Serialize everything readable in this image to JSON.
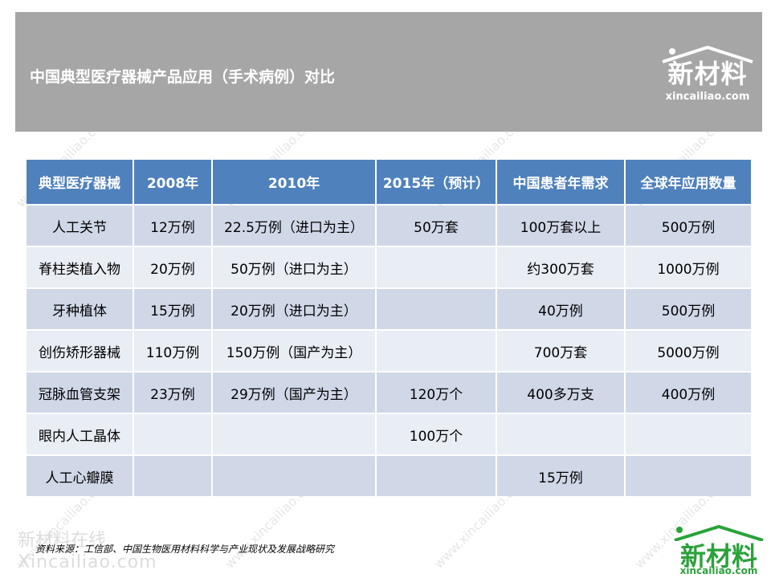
{
  "header": {
    "title": "中国典型医疗器械产品应用（手术病例）对比",
    "logo_cn": "新材料",
    "logo_en": "xincailiao.com"
  },
  "table": {
    "headers": [
      "典型医疗器械",
      "2008年",
      "2010年",
      "2015年（预计）",
      "中国患者年需求",
      "全球年应用数量"
    ],
    "rows": [
      [
        "人工关节",
        "12万例",
        "22.5万例（进口为主）",
        "50万套",
        "100万套以上",
        "500万例"
      ],
      [
        "脊柱类植入物",
        "20万例",
        "50万例（进口为主）",
        "",
        "约300万套",
        "1000万例"
      ],
      [
        "牙种植体",
        "15万例",
        "20万例（进口为主）",
        "",
        "40万例",
        "500万例"
      ],
      [
        "创伤矫形器械",
        "110万例",
        "150万例（国产为主）",
        "",
        "700万套",
        "5000万例"
      ],
      [
        "冠脉血管支架",
        "23万例",
        "29万例（国产为主）",
        "120万个",
        "400多万支",
        "400万例"
      ],
      [
        "眼内人工晶体",
        "",
        "",
        "100万个",
        "",
        ""
      ],
      [
        "人工心瓣膜",
        "",
        "",
        "",
        "15万例",
        ""
      ]
    ]
  },
  "footer": {
    "source": "资料来源：工信部、中国生物医用材料科学与产业现状及发展战略研究",
    "watermark_cn": "新材料在线",
    "watermark_en": "Xincailiao.com",
    "logo_cn": "新材料",
    "logo_en": "xincailiao.com"
  },
  "colors": {
    "header_bg": "#a6a6a6",
    "table_header": "#4f81bd",
    "row_odd": "#d0d8e8",
    "row_even": "#e9edf4",
    "logo_green": "#2aa23a"
  }
}
